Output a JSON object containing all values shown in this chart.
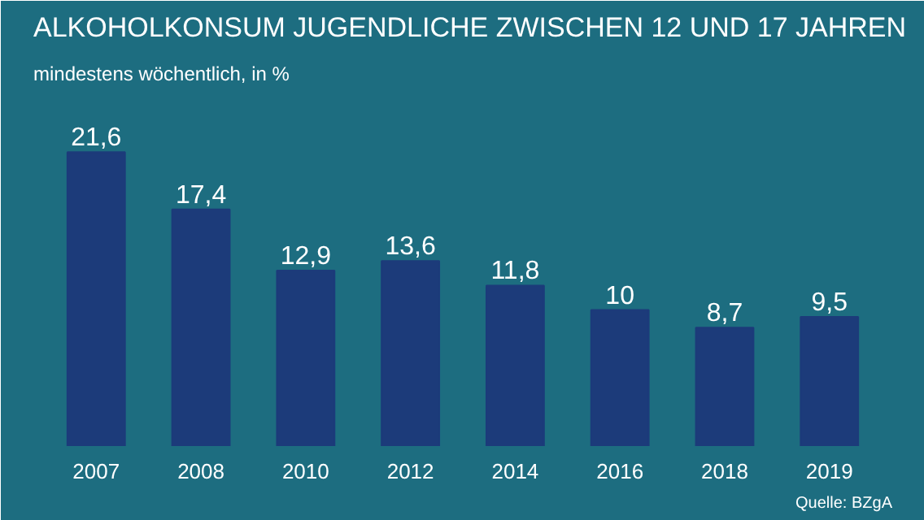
{
  "chart_data": {
    "type": "bar",
    "title": "ALKOHOLKONSUM JUGENDLICHE ZWISCHEN 12 UND 17 JAHREN",
    "subtitle": "mindestens wöchentlich, in %",
    "categories": [
      "2007",
      "2008",
      "2010",
      "2012",
      "2014",
      "2016",
      "2018",
      "2019"
    ],
    "values": [
      21.6,
      17.4,
      12.9,
      13.6,
      11.8,
      10,
      8.7,
      9.5
    ],
    "value_labels": [
      "21,6",
      "17,4",
      "12,9",
      "13,6",
      "11,8",
      "10",
      "8,7",
      "9,5"
    ],
    "color": "#1c3b7a",
    "annotations": [
      "Quelle: BZgA"
    ]
  }
}
